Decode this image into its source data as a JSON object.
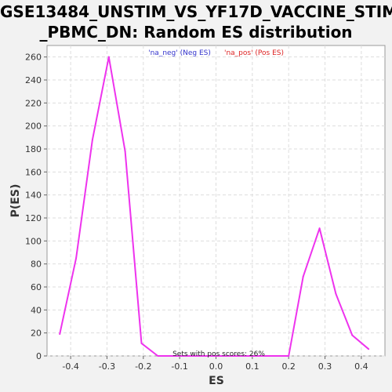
{
  "chart_data": {
    "type": "line",
    "title_line1": "GSE13484_UNSTIM_VS_YF17D_VACCINE_STIM",
    "title_line2": "_PBMC_DN: Random ES distribution",
    "xlabel": "ES",
    "ylabel": "P(ES)",
    "xlim": [
      -0.465,
      0.465
    ],
    "ylim": [
      0,
      270
    ],
    "xticks": [
      -0.4,
      -0.3,
      -0.2,
      -0.1,
      0,
      0.1,
      0.2,
      0.3,
      0.4
    ],
    "xtick_labels": [
      "-0.4",
      "-0.3",
      "-0.2",
      "-0.1",
      "0.0",
      "0.1",
      "0.2",
      "0.3",
      "0.4"
    ],
    "yticks": [
      0,
      20,
      40,
      60,
      80,
      100,
      120,
      140,
      160,
      180,
      200,
      220,
      240,
      260
    ],
    "grid": true,
    "legend_placement": "top-center",
    "legend": [
      {
        "label": "'na_neg' (Neg ES)",
        "color": "#3333cc"
      },
      {
        "label": "'na_pos' (Pos ES)",
        "color": "#dd2222"
      }
    ],
    "annotation": "Sets with pos scores: 26%",
    "series": [
      {
        "color": "#ee33ee",
        "x": [
          -0.43,
          -0.385,
          -0.34,
          -0.295,
          -0.25,
          -0.205,
          -0.16,
          -0.115,
          -0.07,
          -0.025,
          0.02,
          0.065,
          0.11,
          0.155,
          0.2,
          0.24,
          0.285,
          0.33,
          0.375,
          0.42
        ],
        "y": [
          19,
          85,
          188,
          260,
          178,
          11,
          0,
          0,
          0,
          0,
          0,
          0,
          0,
          0,
          0,
          69,
          111,
          54,
          18,
          6
        ]
      }
    ]
  }
}
